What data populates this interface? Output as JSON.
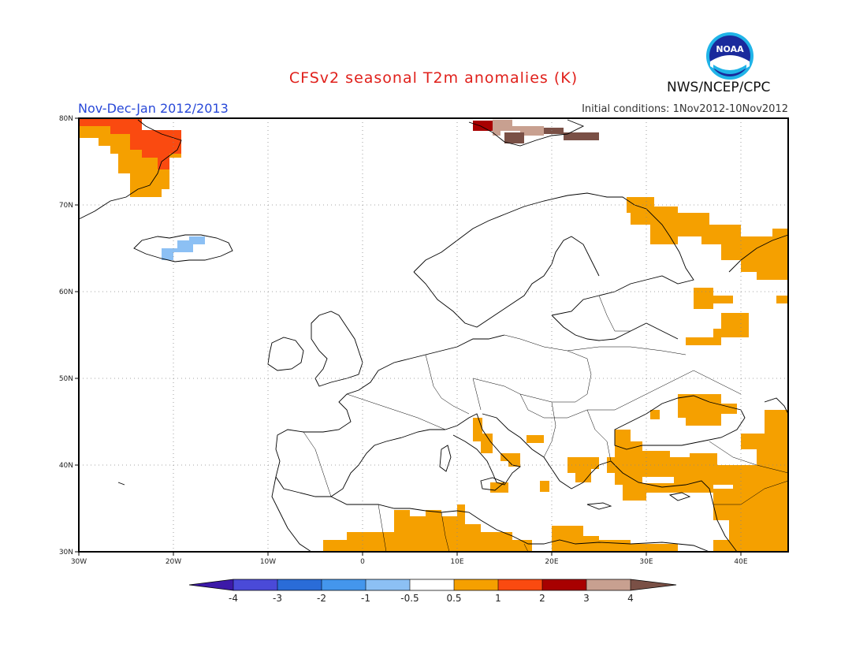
{
  "header": {
    "title": "CFSv2 seasonal T2m anomalies (K)",
    "period": "Nov-Dec-Jan 2012/2013",
    "initial_conditions": "Initial conditions: 1Nov2012-10Nov2012",
    "agency": "NWS/NCEP/CPC",
    "logo_text": "NOAA"
  },
  "map": {
    "lon_range": [
      -30,
      45
    ],
    "lat_range": [
      30,
      80
    ],
    "lon_ticks": [
      "30W",
      "20W",
      "10W",
      "0",
      "10E",
      "20E",
      "30E",
      "40E"
    ],
    "lat_ticks": [
      "80N",
      "70N",
      "60N",
      "50N",
      "40N",
      "30N"
    ]
  },
  "colorbar": {
    "labels": [
      "-4",
      "-3",
      "-2",
      "-1",
      "-0.5",
      "0.5",
      "1",
      "2",
      "3",
      "4"
    ],
    "colors": [
      "#3c19a8",
      "#4a4ad8",
      "#2a6cd8",
      "#4496ec",
      "#8cc0f4",
      "#ffffff",
      "#f5a000",
      "#fa4a10",
      "#a80000",
      "#c8a090",
      "#7a5046"
    ]
  }
}
